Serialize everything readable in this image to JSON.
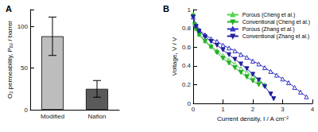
{
  "chart_data": [
    {
      "type": "bar",
      "title": "A",
      "categories": [
        "Modified",
        "Nafion"
      ],
      "values": [
        88,
        25
      ],
      "errors": [
        23,
        10
      ],
      "colors": [
        "#bdbdbd",
        "#5a5a5a"
      ],
      "ylabel": "O₂ permeability, Pₒ₂ / barrer",
      "ylim": [
        0,
        120
      ],
      "yticks": [
        0,
        50,
        100
      ],
      "grid": false
    },
    {
      "type": "line",
      "title": "B",
      "xlabel": "Current density, I / A cm⁻²",
      "ylabel": "Voltage, V / V",
      "xlim": [
        0,
        4
      ],
      "xticks": [
        0,
        1,
        2,
        3,
        4
      ],
      "ylim": [
        0,
        1
      ],
      "yticks": [
        0,
        0.2,
        0.4,
        0.6,
        0.8,
        1
      ],
      "grid": false,
      "legend": "upper right",
      "series": [
        {
          "name": "Porous (Cheng et al.)",
          "color": "#4dd24d",
          "marker": "triangle-up-open",
          "x": [
            0,
            0.05,
            0.1,
            0.2,
            0.4,
            0.6,
            0.8,
            1.0,
            1.2,
            1.4,
            1.6,
            1.8,
            2.0,
            2.2,
            2.4
          ],
          "values": [
            0.95,
            0.85,
            0.8,
            0.74,
            0.67,
            0.61,
            0.56,
            0.51,
            0.46,
            0.42,
            0.37,
            0.33,
            0.29,
            0.25,
            0.2
          ]
        },
        {
          "name": "Conventional (Cheng et al.)",
          "color": "#22b022",
          "marker": "triangle-down",
          "x": [
            0,
            0.05,
            0.1,
            0.2,
            0.4,
            0.6,
            0.8,
            1.0,
            1.2,
            1.4,
            1.6,
            1.8,
            2.0,
            2.2
          ],
          "values": [
            0.93,
            0.84,
            0.79,
            0.73,
            0.66,
            0.6,
            0.54,
            0.48,
            0.43,
            0.38,
            0.33,
            0.28,
            0.24,
            0.2
          ]
        },
        {
          "name": "Porous (Zhang et al.)",
          "color": "#3030c8",
          "marker": "triangle-up-open",
          "x": [
            0,
            0.1,
            0.2,
            0.4,
            0.6,
            0.8,
            1.0,
            1.2,
            1.4,
            1.6,
            1.8,
            2.0,
            2.2,
            2.4,
            2.6,
            2.8,
            3.0,
            3.2,
            3.4,
            3.6,
            3.8
          ],
          "values": [
            0.92,
            0.83,
            0.78,
            0.73,
            0.69,
            0.66,
            0.62,
            0.59,
            0.56,
            0.52,
            0.49,
            0.45,
            0.42,
            0.38,
            0.34,
            0.3,
            0.26,
            0.22,
            0.17,
            0.12,
            0.07
          ]
        },
        {
          "name": "Conventional (Zhang et al.)",
          "color": "#2020a0",
          "marker": "triangle-down",
          "x": [
            0,
            0.1,
            0.2,
            0.4,
            0.6,
            0.8,
            1.0,
            1.2,
            1.4,
            1.6,
            1.8,
            2.0,
            2.2,
            2.4,
            2.6,
            2.7
          ],
          "values": [
            0.92,
            0.82,
            0.77,
            0.71,
            0.66,
            0.62,
            0.57,
            0.52,
            0.47,
            0.42,
            0.37,
            0.31,
            0.25,
            0.18,
            0.1,
            0.05
          ]
        }
      ]
    }
  ]
}
